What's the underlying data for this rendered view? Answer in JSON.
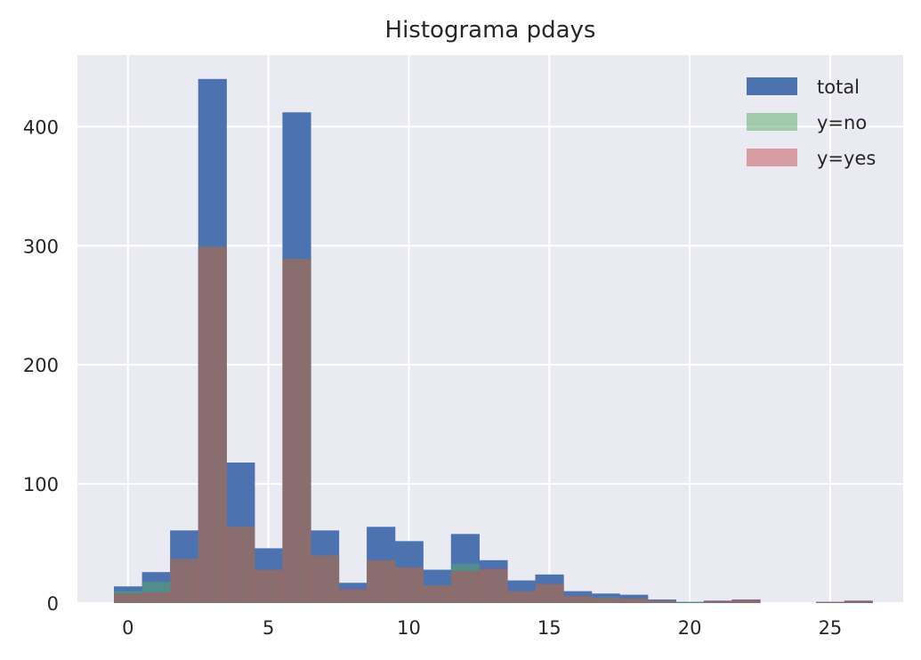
{
  "chart_data": {
    "type": "bar",
    "title": "Histograma pdays",
    "xlabel": "",
    "ylabel": "",
    "xlim": [
      -1.8,
      27.6
    ],
    "ylim": [
      0,
      460
    ],
    "x_ticks": [
      0,
      5,
      10,
      15,
      20,
      25
    ],
    "y_ticks": [
      0,
      100,
      200,
      300,
      400
    ],
    "grid": true,
    "background_color": "#eaeaf2",
    "legend_position": "top-right",
    "bin_edges": [
      -0.5,
      0.5,
      1.5,
      2.5,
      3.5,
      4.5,
      5.5,
      6.5,
      7.5,
      8.5,
      9.5,
      10.5,
      11.5,
      12.5,
      13.5,
      14.5,
      15.5,
      16.5,
      17.5,
      18.5,
      19.5,
      20.5,
      21.5,
      22.5,
      23.5,
      24.5,
      25.5,
      26.5
    ],
    "series": [
      {
        "name": "total",
        "color": "#4c72b0",
        "opacity": 1.0,
        "values": [
          14,
          26,
          61,
          440,
          118,
          46,
          412,
          61,
          17,
          64,
          52,
          28,
          58,
          36,
          19,
          24,
          10,
          8,
          7,
          3,
          1,
          2,
          3,
          0,
          0,
          1,
          2
        ]
      },
      {
        "name": "y=no",
        "color": "#55a868",
        "opacity": 0.5,
        "values": [
          10,
          18,
          37,
          299,
          64,
          28,
          289,
          40,
          11,
          36,
          30,
          15,
          33,
          28,
          10,
          16,
          6,
          5,
          4,
          2,
          1,
          1,
          2,
          0,
          0,
          1,
          1
        ]
      },
      {
        "name": "y=yes",
        "color": "#c44e52",
        "opacity": 0.5,
        "values": [
          8,
          9,
          37,
          299,
          64,
          28,
          289,
          40,
          12,
          36,
          30,
          15,
          27,
          29,
          10,
          16,
          6,
          4,
          4,
          2,
          0,
          2,
          3,
          0,
          0,
          1,
          2
        ]
      }
    ]
  }
}
